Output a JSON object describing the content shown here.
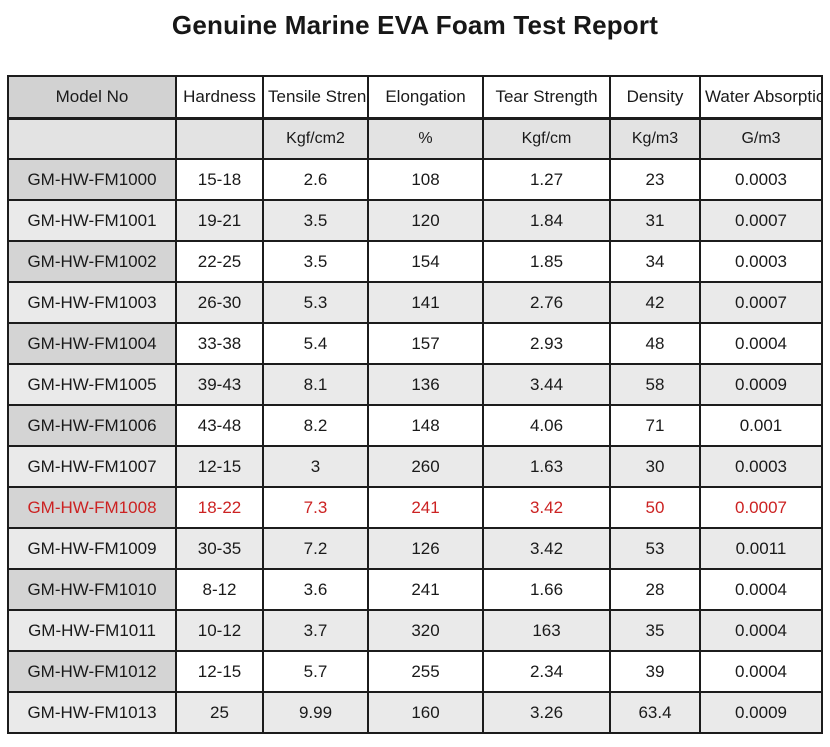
{
  "title": "Genuine Marine EVA Foam Test Report",
  "colors": {
    "highlight_text": "#cc2222",
    "border": "#1c1c1c",
    "model_header_bg": "#d2d2d2",
    "units_row_bg": "#e3e3e3",
    "zebra_gray_bg": "#eaeaea",
    "model_cell_bg": "#d4d4d4"
  },
  "table": {
    "columns": [
      {
        "label": "Model No",
        "unit": ""
      },
      {
        "label": "Hardness",
        "unit": ""
      },
      {
        "label": "Tensile Strength",
        "unit": "Kgf/cm2"
      },
      {
        "label": "Elongation",
        "unit": "%"
      },
      {
        "label": "Tear Strength",
        "unit": "Kgf/cm"
      },
      {
        "label": "Density",
        "unit": "Kg/m3"
      },
      {
        "label": "Water Absorption",
        "unit": "G/m3"
      }
    ],
    "rows": [
      {
        "model": "GM-HW-FM1000",
        "values": [
          "15-18",
          "2.6",
          "108",
          "1.27",
          "23",
          "0.0003"
        ],
        "highlight": false
      },
      {
        "model": "GM-HW-FM1001",
        "values": [
          "19-21",
          "3.5",
          "120",
          "1.84",
          "31",
          "0.0007"
        ],
        "highlight": false
      },
      {
        "model": "GM-HW-FM1002",
        "values": [
          "22-25",
          "3.5",
          "154",
          "1.85",
          "34",
          "0.0003"
        ],
        "highlight": false
      },
      {
        "model": "GM-HW-FM1003",
        "values": [
          "26-30",
          "5.3",
          "141",
          "2.76",
          "42",
          "0.0007"
        ],
        "highlight": false
      },
      {
        "model": "GM-HW-FM1004",
        "values": [
          "33-38",
          "5.4",
          "157",
          "2.93",
          "48",
          "0.0004"
        ],
        "highlight": false
      },
      {
        "model": "GM-HW-FM1005",
        "values": [
          "39-43",
          "8.1",
          "136",
          "3.44",
          "58",
          "0.0009"
        ],
        "highlight": false
      },
      {
        "model": "GM-HW-FM1006",
        "values": [
          "43-48",
          "8.2",
          "148",
          "4.06",
          "71",
          "0.001"
        ],
        "highlight": false
      },
      {
        "model": "GM-HW-FM1007",
        "values": [
          "12-15",
          "3",
          "260",
          "1.63",
          "30",
          "0.0003"
        ],
        "highlight": false
      },
      {
        "model": "GM-HW-FM1008",
        "values": [
          "18-22",
          "7.3",
          "241",
          "3.42",
          "50",
          "0.0007"
        ],
        "highlight": true
      },
      {
        "model": "GM-HW-FM1009",
        "values": [
          "30-35",
          "7.2",
          "126",
          "3.42",
          "53",
          "0.0011"
        ],
        "highlight": false
      },
      {
        "model": "GM-HW-FM1010",
        "values": [
          "8-12",
          "3.6",
          "241",
          "1.66",
          "28",
          "0.0004"
        ],
        "highlight": false
      },
      {
        "model": "GM-HW-FM1011",
        "values": [
          "10-12",
          "3.7",
          "320",
          "163",
          "35",
          "0.0004"
        ],
        "highlight": false
      },
      {
        "model": "GM-HW-FM1012",
        "values": [
          "12-15",
          "5.7",
          "255",
          "2.34",
          "39",
          "0.0004"
        ],
        "highlight": false
      },
      {
        "model": "GM-HW-FM1013",
        "values": [
          "25",
          "9.99",
          "160",
          "3.26",
          "63.4",
          "0.0009"
        ],
        "highlight": false
      }
    ]
  }
}
